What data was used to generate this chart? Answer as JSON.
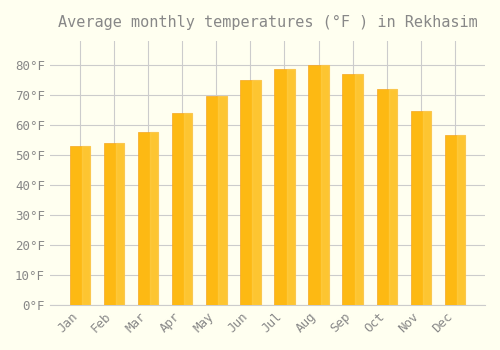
{
  "title": "Average monthly temperatures (°F ) in Rekhasim",
  "months": [
    "Jan",
    "Feb",
    "Mar",
    "Apr",
    "May",
    "Jun",
    "Jul",
    "Aug",
    "Sep",
    "Oct",
    "Nov",
    "Dec"
  ],
  "temperatures": [
    53,
    54,
    57.5,
    64,
    69.5,
    75,
    78.5,
    80,
    77,
    72,
    64.5,
    56.5
  ],
  "bar_color": "#FDB913",
  "bar_edge_color": "#F5A623",
  "background_color": "#FFFFF0",
  "grid_color": "#CCCCCC",
  "text_color": "#888888",
  "ylim": [
    0,
    88
  ],
  "yticks": [
    0,
    10,
    20,
    30,
    40,
    50,
    60,
    70,
    80
  ],
  "ylabel_suffix": "°F",
  "title_fontsize": 11,
  "tick_fontsize": 9,
  "figsize": [
    5.0,
    3.5
  ],
  "dpi": 100
}
